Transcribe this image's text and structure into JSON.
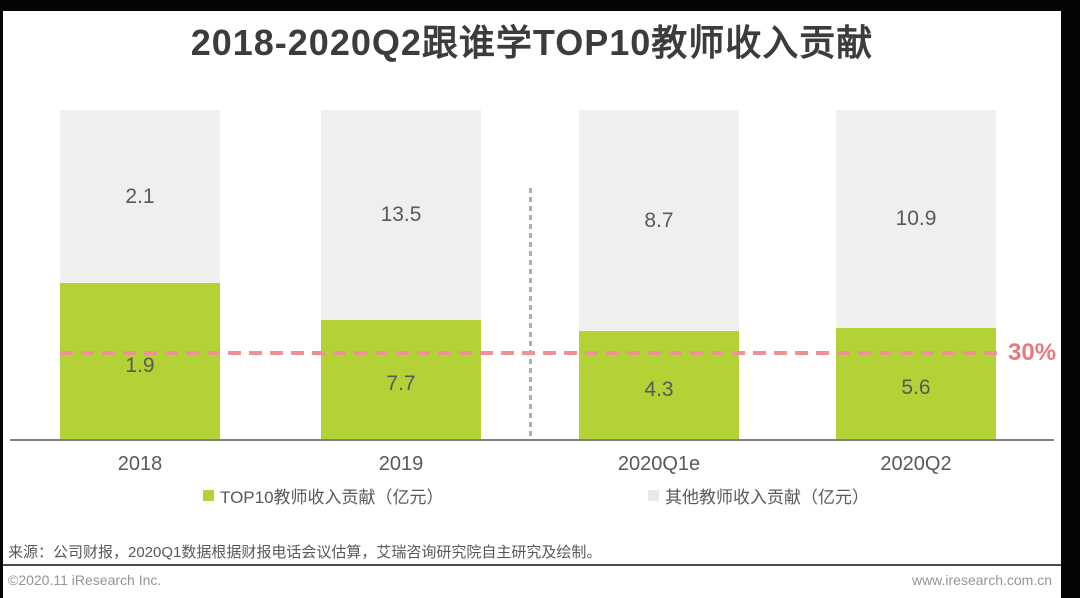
{
  "title": "2018-2020Q2跟谁学TOP10教师收入贡献",
  "chart_data": {
    "type": "bar",
    "subtype": "stacked-100-percent",
    "categories": [
      "2018",
      "2019",
      "2020Q1e",
      "2020Q2"
    ],
    "series": [
      {
        "name": "TOP10教师收入贡献（亿元）",
        "color": "#b2d235",
        "values": [
          1.9,
          7.7,
          4.3,
          5.6
        ]
      },
      {
        "name": "其他教师收入贡献（亿元）",
        "color": "#efefee",
        "values": [
          2.1,
          13.5,
          8.7,
          10.9
        ]
      }
    ],
    "reference_line": {
      "label": "30%",
      "fraction": 0.3,
      "color": "#ed777c"
    },
    "legend_position": "bottom",
    "grid": false,
    "ylim": [
      0,
      1
    ]
  },
  "legend": {
    "top10_label": "TOP10教师收入贡献（亿元）",
    "top10_color": "#b2d235",
    "other_label": "其他教师收入贡献（亿元）",
    "other_color": "#e9e9e9"
  },
  "reference": {
    "label": "30%"
  },
  "source_note": "来源：公司财报，2020Q1数据根据财报电话会议估算，艾瑞咨询研究院自主研究及绘制。",
  "footer": {
    "copyright": "©2020.11 iResearch Inc.",
    "website": "www.iresearch.com.cn"
  },
  "colors": {
    "accent_green": "#b2d235",
    "bar_gray": "#efefee",
    "reference_pink": "#ef9295",
    "title_text": "#3c3c3c",
    "label_text": "#595959",
    "axis_line": "#7f7f7f",
    "footer_text": "#949494"
  }
}
